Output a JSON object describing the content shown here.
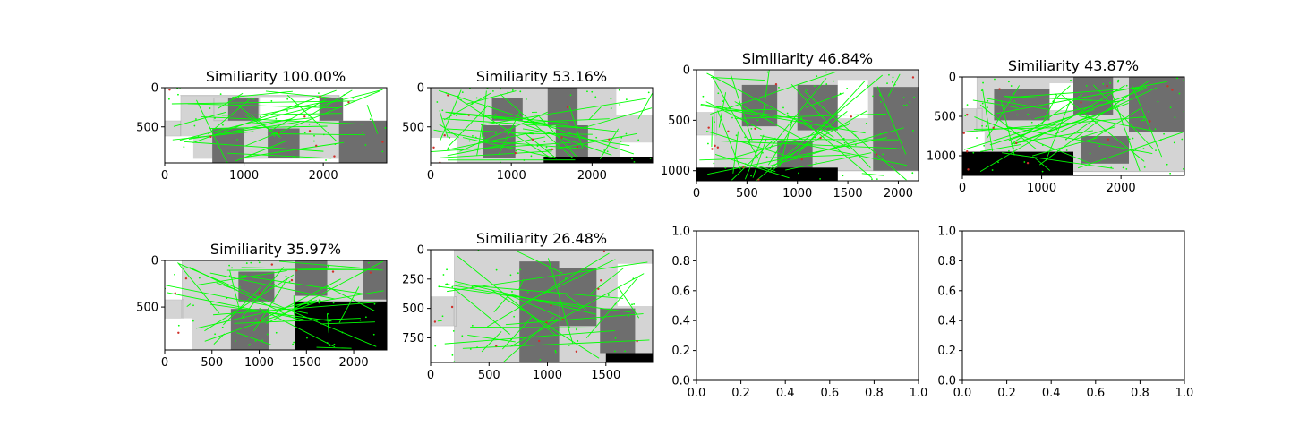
{
  "colors": {
    "match_line": "#00ff00",
    "keypoint_red": "#d0302a",
    "floor_light": "#d4d4d4",
    "floor_mid": "#b9b9b9",
    "floor_dark": "#6e6e6e",
    "void": "#000000",
    "background": "#ffffff"
  },
  "chart_data": [
    {
      "type": "image",
      "title": "Similiarity 100.00%",
      "value_percent": 100.0,
      "xlim": [
        0,
        2800
      ],
      "ylim": [
        960,
        0
      ],
      "xticks": [
        0,
        1000,
        2000
      ],
      "xtick_labels": [
        "0",
        "1000",
        "2000"
      ],
      "yticks": [
        0,
        500
      ],
      "ytick_labels": [
        "0",
        "500"
      ],
      "scene": {
        "rooms": [
          [
            200,
            100,
            2200,
            900
          ],
          [
            620,
            130,
            1180,
            420
          ],
          [
            1950,
            130,
            2250,
            420
          ],
          [
            2200,
            420,
            2800,
            960
          ],
          [
            0,
            420,
            200,
            620
          ]
        ],
        "dark_blocks": [
          [
            800,
            130,
            1180,
            420
          ],
          [
            1950,
            130,
            2250,
            420
          ],
          [
            600,
            520,
            1000,
            960
          ],
          [
            1300,
            520,
            1700,
            900
          ],
          [
            2200,
            420,
            2800,
            960
          ]
        ],
        "white_blocks": [
          [
            0,
            100,
            200,
            420
          ],
          [
            0,
            620,
            360,
            960
          ],
          [
            1200,
            120,
            1950,
            420
          ],
          [
            2250,
            100,
            2800,
            420
          ]
        ],
        "void_blocks": [],
        "match_lines": 30,
        "scatter_points": 40,
        "red_points": 10,
        "seed": 11
      }
    },
    {
      "type": "image",
      "title": "Similiarity 53.16%",
      "value_percent": 53.16,
      "xlim": [
        0,
        2750
      ],
      "ylim": [
        960,
        0
      ],
      "xticks": [
        0,
        1000,
        2000
      ],
      "xtick_labels": [
        "0",
        "1000",
        "2000"
      ],
      "yticks": [
        0,
        500
      ],
      "ytick_labels": [
        "0",
        "500"
      ],
      "scene": {
        "rooms": [
          [
            0,
            0,
            2750,
            960
          ]
        ],
        "dark_blocks": [
          [
            760,
            130,
            1140,
            420
          ],
          [
            1450,
            0,
            1820,
            480
          ],
          [
            650,
            480,
            1050,
            900
          ],
          [
            1550,
            480,
            1950,
            880
          ]
        ],
        "white_blocks": [
          [
            2300,
            0,
            2750,
            350
          ],
          [
            0,
            640,
            330,
            960
          ],
          [
            2350,
            700,
            2750,
            960
          ]
        ],
        "void_blocks": [
          [
            1400,
            880,
            2750,
            960
          ]
        ],
        "match_lines": 40,
        "scatter_points": 60,
        "red_points": 12,
        "seed": 23
      }
    },
    {
      "type": "image",
      "title": "Similiarity 46.84%",
      "value_percent": 46.84,
      "xlim": [
        0,
        2200
      ],
      "ylim": [
        1100,
        0
      ],
      "xticks": [
        0,
        500,
        1000,
        1500,
        2000
      ],
      "xtick_labels": [
        "0",
        "500",
        "1000",
        "1500",
        "2000"
      ],
      "yticks": [
        0,
        500,
        1000
      ],
      "ytick_labels": [
        "0",
        "500",
        "1000"
      ],
      "scene": {
        "rooms": [
          [
            180,
            0,
            2200,
            1000
          ],
          [
            0,
            420,
            200,
            650
          ]
        ],
        "dark_blocks": [
          [
            450,
            150,
            800,
            560
          ],
          [
            1000,
            150,
            1400,
            600
          ],
          [
            1750,
            170,
            2200,
            1000
          ],
          [
            800,
            700,
            1150,
            1000
          ]
        ],
        "white_blocks": [
          [
            0,
            0,
            180,
            420
          ],
          [
            0,
            650,
            180,
            970
          ],
          [
            1400,
            100,
            1700,
            480
          ]
        ],
        "void_blocks": [
          [
            0,
            970,
            1400,
            1100
          ]
        ],
        "match_lines": 45,
        "scatter_points": 70,
        "red_points": 14,
        "seed": 37
      }
    },
    {
      "type": "image",
      "title": "Similiarity 43.87%",
      "value_percent": 43.87,
      "xlim": [
        0,
        2800
      ],
      "ylim": [
        1250,
        0
      ],
      "xticks": [
        0,
        1000,
        2000
      ],
      "xtick_labels": [
        "0",
        "1000",
        "2000"
      ],
      "yticks": [
        0,
        500,
        1000
      ],
      "ytick_labels": [
        "0",
        "500",
        "1000"
      ],
      "scene": {
        "rooms": [
          [
            180,
            0,
            2800,
            1200
          ],
          [
            0,
            400,
            250,
            700
          ]
        ],
        "dark_blocks": [
          [
            400,
            150,
            1100,
            550
          ],
          [
            1400,
            0,
            1900,
            480
          ],
          [
            2100,
            0,
            2800,
            700
          ],
          [
            1500,
            750,
            2100,
            1100
          ]
        ],
        "white_blocks": [
          [
            0,
            0,
            180,
            400
          ],
          [
            0,
            700,
            280,
            950
          ],
          [
            1100,
            80,
            1400,
            420
          ]
        ],
        "void_blocks": [
          [
            0,
            950,
            1400,
            1250
          ]
        ],
        "match_lines": 40,
        "scatter_points": 80,
        "red_points": 14,
        "seed": 53
      }
    },
    {
      "type": "image",
      "title": "Similiarity 35.97%",
      "value_percent": 35.97,
      "xlim": [
        0,
        2350
      ],
      "ylim": [
        960,
        0
      ],
      "xticks": [
        0,
        500,
        1000,
        1500,
        2000
      ],
      "xtick_labels": [
        "0",
        "500",
        "1000",
        "1500",
        "2000"
      ],
      "yticks": [
        0,
        500
      ],
      "ytick_labels": [
        "0",
        "500"
      ],
      "scene": {
        "rooms": [
          [
            180,
            0,
            2350,
            960
          ],
          [
            0,
            420,
            200,
            620
          ]
        ],
        "dark_blocks": [
          [
            780,
            120,
            1160,
            440
          ],
          [
            1380,
            0,
            1720,
            380
          ],
          [
            2100,
            0,
            2350,
            420
          ],
          [
            700,
            520,
            1100,
            960
          ]
        ],
        "white_blocks": [
          [
            0,
            0,
            180,
            420
          ],
          [
            0,
            620,
            290,
            960
          ]
        ],
        "void_blocks": [
          [
            1380,
            440,
            2350,
            960
          ]
        ],
        "match_lines": 35,
        "scatter_points": 60,
        "red_points": 10,
        "seed": 71
      }
    },
    {
      "type": "image",
      "title": "Similiarity 26.48%",
      "value_percent": 26.48,
      "xlim": [
        0,
        1900
      ],
      "ylim": [
        960,
        0
      ],
      "xticks": [
        0,
        500,
        1000,
        1500
      ],
      "xtick_labels": [
        "0",
        "500",
        "1000",
        "1500"
      ],
      "yticks": [
        0,
        250,
        500,
        750
      ],
      "ytick_labels": [
        "0",
        "250",
        "500",
        "750"
      ],
      "scene": {
        "rooms": [
          [
            200,
            0,
            1900,
            960
          ],
          [
            0,
            400,
            220,
            650
          ]
        ],
        "dark_blocks": [
          [
            760,
            100,
            1100,
            480
          ],
          [
            1100,
            160,
            1420,
            650
          ],
          [
            760,
            480,
            1100,
            960
          ],
          [
            1450,
            500,
            1750,
            880
          ]
        ],
        "white_blocks": [
          [
            0,
            0,
            200,
            400
          ],
          [
            0,
            650,
            200,
            960
          ],
          [
            1600,
            120,
            1900,
            480
          ]
        ],
        "void_blocks": [
          [
            1500,
            880,
            1900,
            960
          ]
        ],
        "match_lines": 30,
        "scatter_points": 50,
        "red_points": 12,
        "seed": 89
      }
    },
    {
      "type": "empty",
      "title": "",
      "xlim": [
        0,
        1
      ],
      "ylim": [
        0,
        1
      ],
      "xticks": [
        0,
        0.2,
        0.4,
        0.6,
        0.8,
        1.0
      ],
      "xtick_labels": [
        "0.0",
        "0.2",
        "0.4",
        "0.6",
        "0.8",
        "1.0"
      ],
      "yticks": [
        0,
        0.2,
        0.4,
        0.6,
        0.8,
        1.0
      ],
      "ytick_labels": [
        "0.0",
        "0.2",
        "0.4",
        "0.6",
        "0.8",
        "1.0"
      ]
    },
    {
      "type": "empty",
      "title": "",
      "xlim": [
        0,
        1
      ],
      "ylim": [
        0,
        1
      ],
      "xticks": [
        0,
        0.2,
        0.4,
        0.6,
        0.8,
        1.0
      ],
      "xtick_labels": [
        "0.0",
        "0.2",
        "0.4",
        "0.6",
        "0.8",
        "1.0"
      ],
      "yticks": [
        0,
        0.2,
        0.4,
        0.6,
        0.8,
        1.0
      ],
      "ytick_labels": [
        "0.0",
        "0.2",
        "0.4",
        "0.6",
        "0.8",
        "1.0"
      ]
    }
  ]
}
